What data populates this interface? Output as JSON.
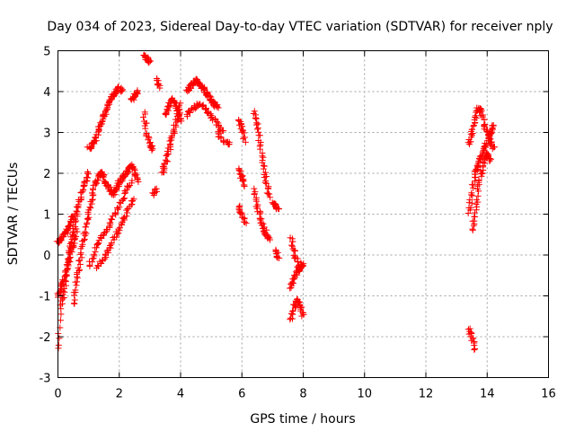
{
  "chart_data": {
    "type": "scatter",
    "title": "Day 034 of 2023, Sidereal Day-to-day VTEC variation (SDTVAR) for receiver nply",
    "xlabel": "GPS time / hours",
    "ylabel": "SDTVAR / TECUs",
    "xlim": [
      0,
      16
    ],
    "ylim": [
      -3,
      5
    ],
    "xticks": [
      0,
      2,
      4,
      6,
      8,
      10,
      12,
      14,
      16
    ],
    "yticks": [
      -3,
      -2,
      -1,
      0,
      1,
      2,
      3,
      4,
      5
    ],
    "grid": true,
    "marker": "plus",
    "color": "#ff0000",
    "segments": [
      {
        "x": [
          0.0,
          0.1,
          0.2,
          0.3,
          0.4,
          0.5,
          0.6,
          0.7,
          0.8,
          0.9,
          1.0
        ],
        "y": [
          -2.3,
          -1.2,
          -0.9,
          -0.3,
          0.2,
          0.6,
          1.0,
          1.3,
          1.6,
          1.8,
          2.0
        ]
      },
      {
        "x": [
          0.0,
          0.1,
          0.2,
          0.3,
          0.4,
          0.5
        ],
        "y": [
          0.3,
          0.4,
          0.5,
          0.6,
          0.8,
          1.0
        ]
      },
      {
        "x": [
          0.0,
          0.1,
          0.2,
          0.3,
          0.4,
          0.5,
          0.6
        ],
        "y": [
          -1.0,
          -0.8,
          -0.6,
          -0.3,
          0.0,
          0.3,
          0.6
        ]
      },
      {
        "x": [
          0.5,
          0.6,
          0.7,
          0.8,
          0.9,
          1.0,
          1.1,
          1.2,
          1.3,
          1.4,
          1.5,
          1.6,
          1.7,
          1.8,
          1.9,
          2.0,
          2.1,
          2.2,
          2.3,
          2.4,
          2.5,
          2.6
        ],
        "y": [
          -1.2,
          -0.7,
          -0.3,
          0.2,
          0.6,
          1.0,
          1.4,
          1.7,
          1.9,
          2.0,
          1.9,
          1.7,
          1.6,
          1.5,
          1.6,
          1.8,
          1.9,
          2.0,
          2.1,
          2.2,
          2.0,
          1.8
        ]
      },
      {
        "x": [
          1.0,
          1.2,
          1.4,
          1.6,
          1.8,
          2.0,
          2.2,
          2.4
        ],
        "y": [
          -0.3,
          0.1,
          0.4,
          0.6,
          0.9,
          1.2,
          1.5,
          1.8
        ]
      },
      {
        "x": [
          1.3,
          1.5,
          1.7,
          1.9,
          2.1,
          2.3,
          2.5
        ],
        "y": [
          -0.3,
          -0.1,
          0.2,
          0.5,
          0.8,
          1.1,
          1.4
        ]
      },
      {
        "x": [
          1.0,
          1.1,
          1.2,
          1.3,
          1.4,
          1.5,
          1.6,
          1.7,
          1.8,
          1.9,
          2.0,
          2.1
        ],
        "y": [
          2.6,
          2.7,
          2.8,
          3.0,
          3.2,
          3.4,
          3.6,
          3.8,
          3.9,
          4.0,
          4.1,
          4.0
        ]
      },
      {
        "x": [
          2.4,
          2.5,
          2.6
        ],
        "y": [
          3.8,
          3.9,
          4.0
        ]
      },
      {
        "x": [
          2.8,
          2.9,
          3.0
        ],
        "y": [
          4.9,
          4.8,
          4.7
        ]
      },
      {
        "x": [
          2.8,
          2.9,
          3.0,
          3.1
        ],
        "y": [
          3.5,
          3.0,
          2.7,
          2.6
        ]
      },
      {
        "x": [
          3.2,
          3.3
        ],
        "y": [
          4.3,
          4.1
        ]
      },
      {
        "x": [
          3.1,
          3.2
        ],
        "y": [
          1.5,
          1.6
        ]
      },
      {
        "x": [
          3.4,
          3.5,
          3.6,
          3.7,
          3.8,
          3.9,
          4.0
        ],
        "y": [
          2.0,
          2.2,
          2.5,
          2.8,
          3.1,
          3.4,
          3.7
        ]
      },
      {
        "x": [
          3.5,
          3.6,
          3.7,
          3.8,
          3.9,
          4.0
        ],
        "y": [
          3.4,
          3.6,
          3.8,
          3.7,
          3.5,
          3.3
        ]
      },
      {
        "x": [
          4.2,
          4.3,
          4.4,
          4.5,
          4.6,
          4.7,
          4.8,
          4.9,
          5.0,
          5.1,
          5.2
        ],
        "y": [
          4.0,
          4.1,
          4.2,
          4.3,
          4.2,
          4.1,
          4.0,
          3.9,
          3.8,
          3.7,
          3.6
        ]
      },
      {
        "x": [
          4.2,
          4.4,
          4.6,
          4.8,
          5.0,
          5.2,
          5.4
        ],
        "y": [
          3.4,
          3.6,
          3.7,
          3.6,
          3.4,
          3.2,
          3.0
        ]
      },
      {
        "x": [
          5.2,
          5.4,
          5.6
        ],
        "y": [
          3.0,
          2.8,
          2.7
        ]
      },
      {
        "x": [
          5.9,
          6.0,
          6.1
        ],
        "y": [
          3.3,
          3.1,
          2.8
        ]
      },
      {
        "x": [
          5.9,
          6.0,
          6.1
        ],
        "y": [
          2.1,
          1.9,
          1.7
        ]
      },
      {
        "x": [
          5.9,
          6.0,
          6.1
        ],
        "y": [
          1.2,
          1.0,
          0.8
        ]
      },
      {
        "x": [
          6.4,
          6.5,
          6.6,
          6.7,
          6.8,
          6.9
        ],
        "y": [
          3.5,
          3.2,
          2.7,
          2.2,
          1.8,
          1.4
        ]
      },
      {
        "x": [
          6.4,
          6.5,
          6.6,
          6.7,
          6.8,
          6.9
        ],
        "y": [
          1.6,
          1.2,
          0.9,
          0.7,
          0.5,
          0.4
        ]
      },
      {
        "x": [
          7.0,
          7.1,
          7.2
        ],
        "y": [
          1.3,
          1.2,
          1.1
        ]
      },
      {
        "x": [
          7.1,
          7.2
        ],
        "y": [
          0.1,
          -0.1
        ]
      },
      {
        "x": [
          7.6,
          7.7,
          7.8,
          7.9
        ],
        "y": [
          0.4,
          0.1,
          -0.2,
          -0.4
        ]
      },
      {
        "x": [
          7.6,
          7.7,
          7.8,
          7.9,
          8.0
        ],
        "y": [
          -0.8,
          -0.6,
          -0.4,
          -0.3,
          -0.2
        ]
      },
      {
        "x": [
          7.6,
          7.7,
          7.8,
          7.9,
          8.0
        ],
        "y": [
          -1.6,
          -1.3,
          -1.1,
          -1.2,
          -1.5
        ]
      },
      {
        "x": [
          13.4,
          13.5,
          13.6,
          13.7,
          13.8,
          13.9,
          14.0,
          14.1,
          14.2
        ],
        "y": [
          2.7,
          3.0,
          3.3,
          3.6,
          3.5,
          3.2,
          3.0,
          2.8,
          2.6
        ]
      },
      {
        "x": [
          13.4,
          13.5,
          13.6,
          13.7,
          13.8,
          13.9,
          14.0,
          14.1,
          14.2
        ],
        "y": [
          1.0,
          1.5,
          2.0,
          2.2,
          2.4,
          2.6,
          2.8,
          3.0,
          3.2
        ]
      },
      {
        "x": [
          13.5,
          13.6,
          13.7,
          13.8,
          13.9,
          14.0,
          14.1
        ],
        "y": [
          0.6,
          1.0,
          1.6,
          2.0,
          2.3,
          2.5,
          2.3
        ]
      },
      {
        "x": [
          13.4,
          13.5,
          13.6
        ],
        "y": [
          -1.8,
          -2.0,
          -2.3
        ]
      }
    ]
  }
}
